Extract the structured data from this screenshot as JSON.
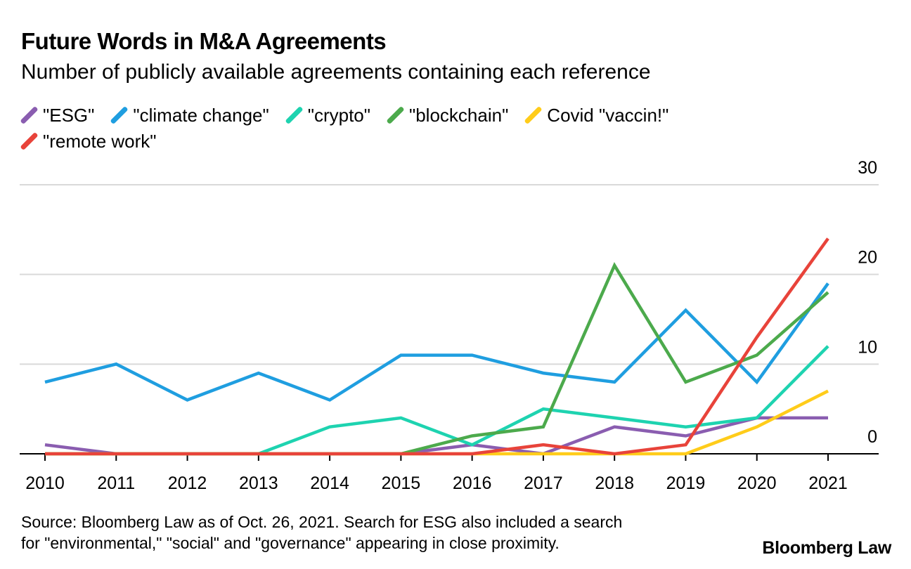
{
  "header": {
    "title": "Future Words in M&A Agreements",
    "subtitle": "Number of publicly available agreements containing each reference"
  },
  "footer": {
    "source_line1": "Source: Bloomberg Law as of Oct. 26, 2021. Search for ESG also included a search",
    "source_line2": "for \"environmental,\" \"social\" and \"governance\" appearing in close proximity.",
    "brand": "Bloomberg Law"
  },
  "chart_data": {
    "type": "line",
    "title": "Future Words in M&A Agreements",
    "subtitle": "Number of publicly available agreements containing each reference",
    "xlabel": "",
    "ylabel": "",
    "x": [
      "2010",
      "2011",
      "2012",
      "2013",
      "2014",
      "2015",
      "2016",
      "2017",
      "2018",
      "2019",
      "2020",
      "2021"
    ],
    "ylim": [
      0,
      30
    ],
    "yticks": [
      "0",
      "10",
      "20",
      "30"
    ],
    "grid": true,
    "legend_position": "top",
    "series": [
      {
        "name": "\"ESG\"",
        "color": "#8a5db0",
        "values": [
          1,
          0,
          0,
          0,
          0,
          0,
          1,
          0,
          3,
          2,
          4,
          4
        ]
      },
      {
        "name": "\"climate change\"",
        "color": "#1f9ee0",
        "values": [
          8,
          10,
          6,
          9,
          6,
          11,
          11,
          9,
          8,
          16,
          8,
          19
        ]
      },
      {
        "name": "\"crypto\"",
        "color": "#1ed3b0",
        "values": [
          0,
          0,
          0,
          0,
          3,
          4,
          1,
          5,
          4,
          3,
          4,
          12
        ]
      },
      {
        "name": "\"blockchain\"",
        "color": "#4caa4c",
        "values": [
          0,
          0,
          0,
          0,
          0,
          0,
          2,
          3,
          21,
          8,
          11,
          18
        ]
      },
      {
        "name": "Covid \"vaccin!\"",
        "color": "#ffcc1a",
        "values": [
          0,
          0,
          0,
          0,
          0,
          0,
          0,
          0,
          0,
          0,
          3,
          7
        ]
      },
      {
        "name": "\"remote work\"",
        "color": "#e8433a",
        "values": [
          0,
          0,
          0,
          0,
          0,
          0,
          0,
          1,
          0,
          1,
          13,
          24
        ]
      }
    ]
  }
}
